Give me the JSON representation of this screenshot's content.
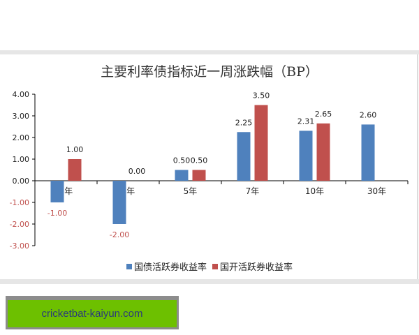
{
  "chart_data": {
    "type": "bar",
    "title": "主要利率债指标近一周涨跌幅（BP）",
    "categories": [
      "1年",
      "3年",
      "5年",
      "7年",
      "10年",
      "30年"
    ],
    "series": [
      {
        "name": "国债活跃券收益率",
        "color": "#4f81bd",
        "values": [
          -1.0,
          -2.0,
          0.5,
          2.25,
          2.31,
          2.6
        ]
      },
      {
        "name": "国开活跃券收益率",
        "color": "#c0504d",
        "values": [
          1.0,
          0.0,
          0.5,
          3.5,
          2.65,
          null
        ]
      }
    ],
    "data_labels": {
      "series0": [
        "-1.00",
        "-2.00",
        "0.50",
        "2.25",
        "2.31",
        "2.60"
      ],
      "series1": [
        "1.00",
        "0.00",
        "0.50",
        "3.50",
        "2.65",
        ""
      ]
    },
    "yticks": [
      "4.00",
      "3.00",
      "2.00",
      "1.00",
      "0.00",
      "-1.00",
      "-2.00",
      "-3.00"
    ],
    "ylim": [
      -3,
      4
    ],
    "xlabel": "",
    "ylabel": "",
    "grid": false,
    "legend_position": "bottom",
    "negative_label_color": "#c0504d"
  },
  "page": {
    "title": "主要利率债指标近一周涨跌幅（BP）",
    "legend": [
      "国债活跃券收益率",
      "国开活跃券收益率"
    ],
    "ad_text": "cricketbat-kaiyun.com"
  }
}
